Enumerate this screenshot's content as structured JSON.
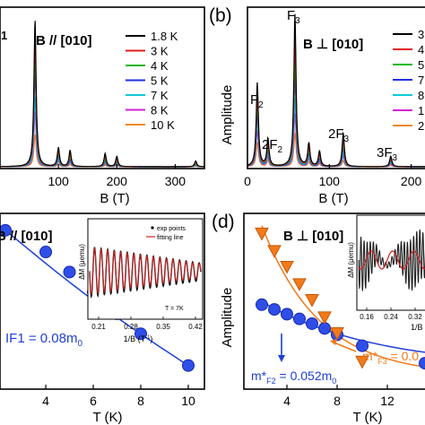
{
  "colors": {
    "axis": "#000000",
    "blue": "#1f3fd8",
    "orange": "#f27a1a",
    "red": "#d42020",
    "gray": "#555555"
  },
  "panel_a": {
    "field_label": "B // [010]",
    "peak_label": "1",
    "xlabel": "B (T)",
    "xticks": [
      "100",
      "200",
      "300"
    ],
    "legend": [
      {
        "label": "1.8 K",
        "color": "#000000"
      },
      {
        "label": "3 K",
        "color": "#e01b1b"
      },
      {
        "label": "4 K",
        "color": "#1fb81f"
      },
      {
        "label": "5 K",
        "color": "#1f2fe0"
      },
      {
        "label": "7 K",
        "color": "#12c8d8"
      },
      {
        "label": "8 K",
        "color": "#d41fd4"
      },
      {
        "label": "10 K",
        "color": "#f08a24"
      }
    ]
  },
  "panel_b": {
    "panel_label": "(b)",
    "field_label": "B ⊥ [010]",
    "ylabel": "Amplitude",
    "xlabel": "B (T)",
    "xticks": [
      "0",
      "100",
      "200"
    ],
    "peak_labels": {
      "f2": "F",
      "f2_sub": "2",
      "f3": "F",
      "f3_sub": "3",
      "two_f2": "2F",
      "two_f2_sub": "2",
      "two_f3": "2F",
      "two_f3_sub": "3",
      "three_f3": "3F",
      "three_f3_sub": "3"
    },
    "legend_partial": [
      "3",
      "4",
      "5",
      "7",
      "8",
      "1",
      "2"
    ]
  },
  "panel_c": {
    "field_label": "B // [010]",
    "xlabel": "T (K)",
    "xticks": [
      "4",
      "6",
      "8",
      "10"
    ],
    "mass_text": "IF1 = 0.08m",
    "mass_sub": "0",
    "inset": {
      "ylabel": "ΔM (μemu)",
      "xlabel": "1/B (T",
      "xlabel_sup": "-1",
      "xlabel_end": ")",
      "xticks": [
        "0.21",
        "0.28",
        "0.35",
        "0.42"
      ],
      "legend": [
        "exp points",
        "fitting line"
      ],
      "temp_label": "T = 7K"
    }
  },
  "panel_d": {
    "panel_label": "(d)",
    "field_label": "B ⊥ [010]",
    "ylabel": "Amplitude",
    "xlabel": "T (K)",
    "xticks": [
      "4",
      "8",
      "12",
      "16"
    ],
    "mass_f3_prefix": "m*",
    "mass_f3_sub": "F3",
    "mass_f3_value": " = 0.0",
    "mass_f2_prefix": "m*",
    "mass_f2_sub": "F2",
    "mass_f2_value": " = 0.052m",
    "mass_f2_unit_sub": "0",
    "inset": {
      "ylabel": "ΔM (μemu)",
      "xlabel": "1/B",
      "xticks": [
        "0.16",
        "0.24",
        "0.32"
      ]
    }
  },
  "chart_data": [
    {
      "type": "line",
      "panel": "a",
      "xlabel": "B (T)",
      "xlim": [
        0,
        350
      ],
      "series_names": [
        "1.8 K",
        "3 K",
        "4 K",
        "5 K",
        "7 K",
        "8 K",
        "10 K"
      ],
      "peaks": [
        {
          "x": 60,
          "rel_height": [
            1.0,
            0.88,
            0.76,
            0.64,
            0.48,
            0.38,
            0.22
          ]
        },
        {
          "x": 100,
          "rel_height": [
            0.13,
            0.11,
            0.09,
            0.07,
            0.05,
            0.04,
            0.02
          ]
        },
        {
          "x": 120,
          "rel_height": [
            0.11,
            0.09,
            0.07,
            0.05,
            0.04,
            0.03,
            0.015
          ]
        },
        {
          "x": 180,
          "rel_height": [
            0.09,
            0.07,
            0.05,
            0.04,
            0.03,
            0.02,
            0.01
          ]
        },
        {
          "x": 200,
          "rel_height": [
            0.07,
            0.05,
            0.04,
            0.03,
            0.02,
            0.015,
            0.008
          ]
        },
        {
          "x": 335,
          "rel_height": [
            0.04,
            0.03,
            0.02,
            0.015,
            0.01,
            0.008,
            0.005
          ]
        }
      ]
    },
    {
      "type": "line",
      "panel": "b",
      "xlabel": "B (T)",
      "ylabel": "Amplitude",
      "xlim": [
        0,
        230
      ],
      "peaks": [
        {
          "x": 12,
          "label": "F2",
          "rel_height": [
            0.55,
            0.48,
            0.42,
            0.36,
            0.3,
            0.24,
            0.16
          ]
        },
        {
          "x": 25,
          "label": "2F2",
          "rel_height": [
            0.18,
            0.15,
            0.12,
            0.1,
            0.08,
            0.06,
            0.04
          ]
        },
        {
          "x": 58,
          "label": "F3",
          "rel_height": [
            1.0,
            0.85,
            0.7,
            0.58,
            0.45,
            0.35,
            0.22
          ]
        },
        {
          "x": 75,
          "rel_height": [
            0.15,
            0.12,
            0.1,
            0.08,
            0.06,
            0.05,
            0.03
          ]
        },
        {
          "x": 88,
          "rel_height": [
            0.1,
            0.08,
            0.07,
            0.05,
            0.04,
            0.03,
            0.02
          ]
        },
        {
          "x": 117,
          "label": "2F3",
          "rel_height": [
            0.22,
            0.18,
            0.15,
            0.12,
            0.09,
            0.07,
            0.04
          ]
        },
        {
          "x": 175,
          "label": "3F3",
          "rel_height": [
            0.07,
            0.06,
            0.05,
            0.04,
            0.03,
            0.02,
            0.01
          ]
        }
      ]
    },
    {
      "type": "scatter",
      "panel": "c",
      "xlabel": "T (K)",
      "xlim": [
        2,
        10.5
      ],
      "series": [
        {
          "x": [
            2.3,
            4,
            5,
            6,
            7,
            8,
            10
          ],
          "values": [
            0.93,
            0.8,
            0.68,
            0.56,
            0.43,
            0.31,
            0.12
          ]
        }
      ]
    },
    {
      "type": "scatter",
      "panel": "d",
      "xlabel": "T (K)",
      "ylabel": "Amplitude",
      "xlim": [
        1,
        16
      ],
      "series": [
        {
          "name": "F3",
          "x": [
            2,
            3,
            4,
            5,
            6,
            7,
            8,
            10
          ],
          "values": [
            0.95,
            0.84,
            0.74,
            0.63,
            0.53,
            0.42,
            0.32,
            0.14
          ]
        },
        {
          "name": "F2",
          "x": [
            2,
            3,
            4,
            5,
            6,
            7,
            8,
            10,
            15
          ],
          "values": [
            0.5,
            0.47,
            0.44,
            0.41,
            0.38,
            0.35,
            0.31,
            0.24,
            0.13
          ]
        }
      ]
    }
  ]
}
